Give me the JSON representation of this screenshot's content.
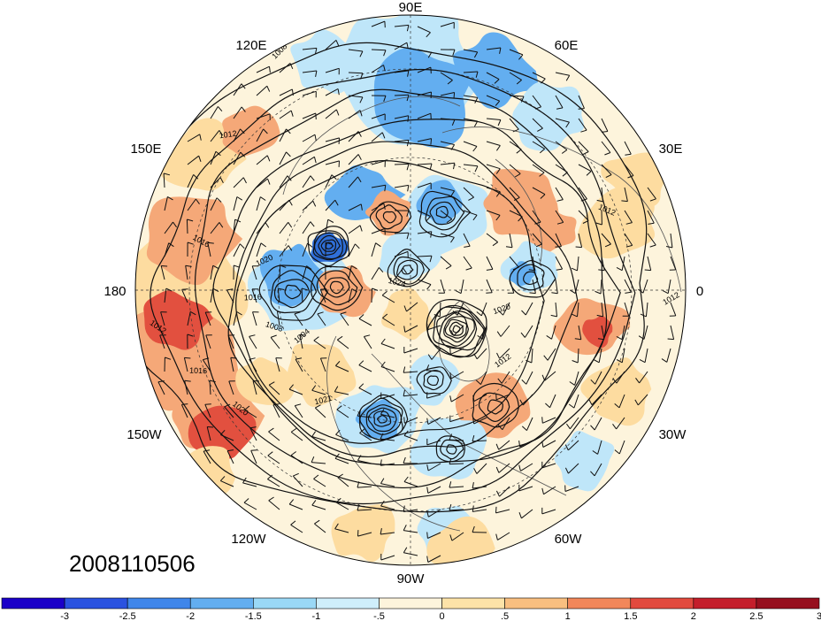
{
  "timestamp": "2008110506",
  "longitude_labels": {
    "deg90E": "90E",
    "deg120E": "120E",
    "deg60E": "60E",
    "deg150E": "150E",
    "deg30E": "30E",
    "deg180": "180",
    "deg0": "0",
    "deg150W": "150W",
    "deg30W": "30W",
    "deg120W": "120W",
    "deg60W": "60W",
    "deg90W": "90W"
  },
  "isobar_labels": [
    "1008",
    "1012",
    "1016",
    "1020",
    "1024",
    "1004",
    "1016",
    "1012",
    "1020",
    "1008",
    "1012",
    "1016",
    "1020",
    "1021",
    "1012",
    "1012"
  ],
  "colorbar": {
    "colors": [
      "#1a00c8",
      "#2a52e0",
      "#3f86ea",
      "#63aef0",
      "#9ad8f6",
      "#cfeefb",
      "#fdf4dc",
      "#fde3a8",
      "#f9bf80",
      "#f2875a",
      "#e24a3e",
      "#c41e2b",
      "#960f1e"
    ],
    "ticks": [
      "-3",
      "-2.5",
      "-2",
      "-1.5",
      "-1",
      "-.5",
      "0",
      ".5",
      "1",
      "1.5",
      "2",
      "2.5",
      "3"
    ]
  },
  "anomaly_colors": {
    "strong_neg": "#2f6fd8",
    "mid_neg": "#63aef0",
    "weak_neg": "#bfe6f9",
    "neutral": "#fdf4dc",
    "weak_pos": "#fddca0",
    "mid_pos": "#f5a878",
    "strong_pos": "#e2503f"
  }
}
